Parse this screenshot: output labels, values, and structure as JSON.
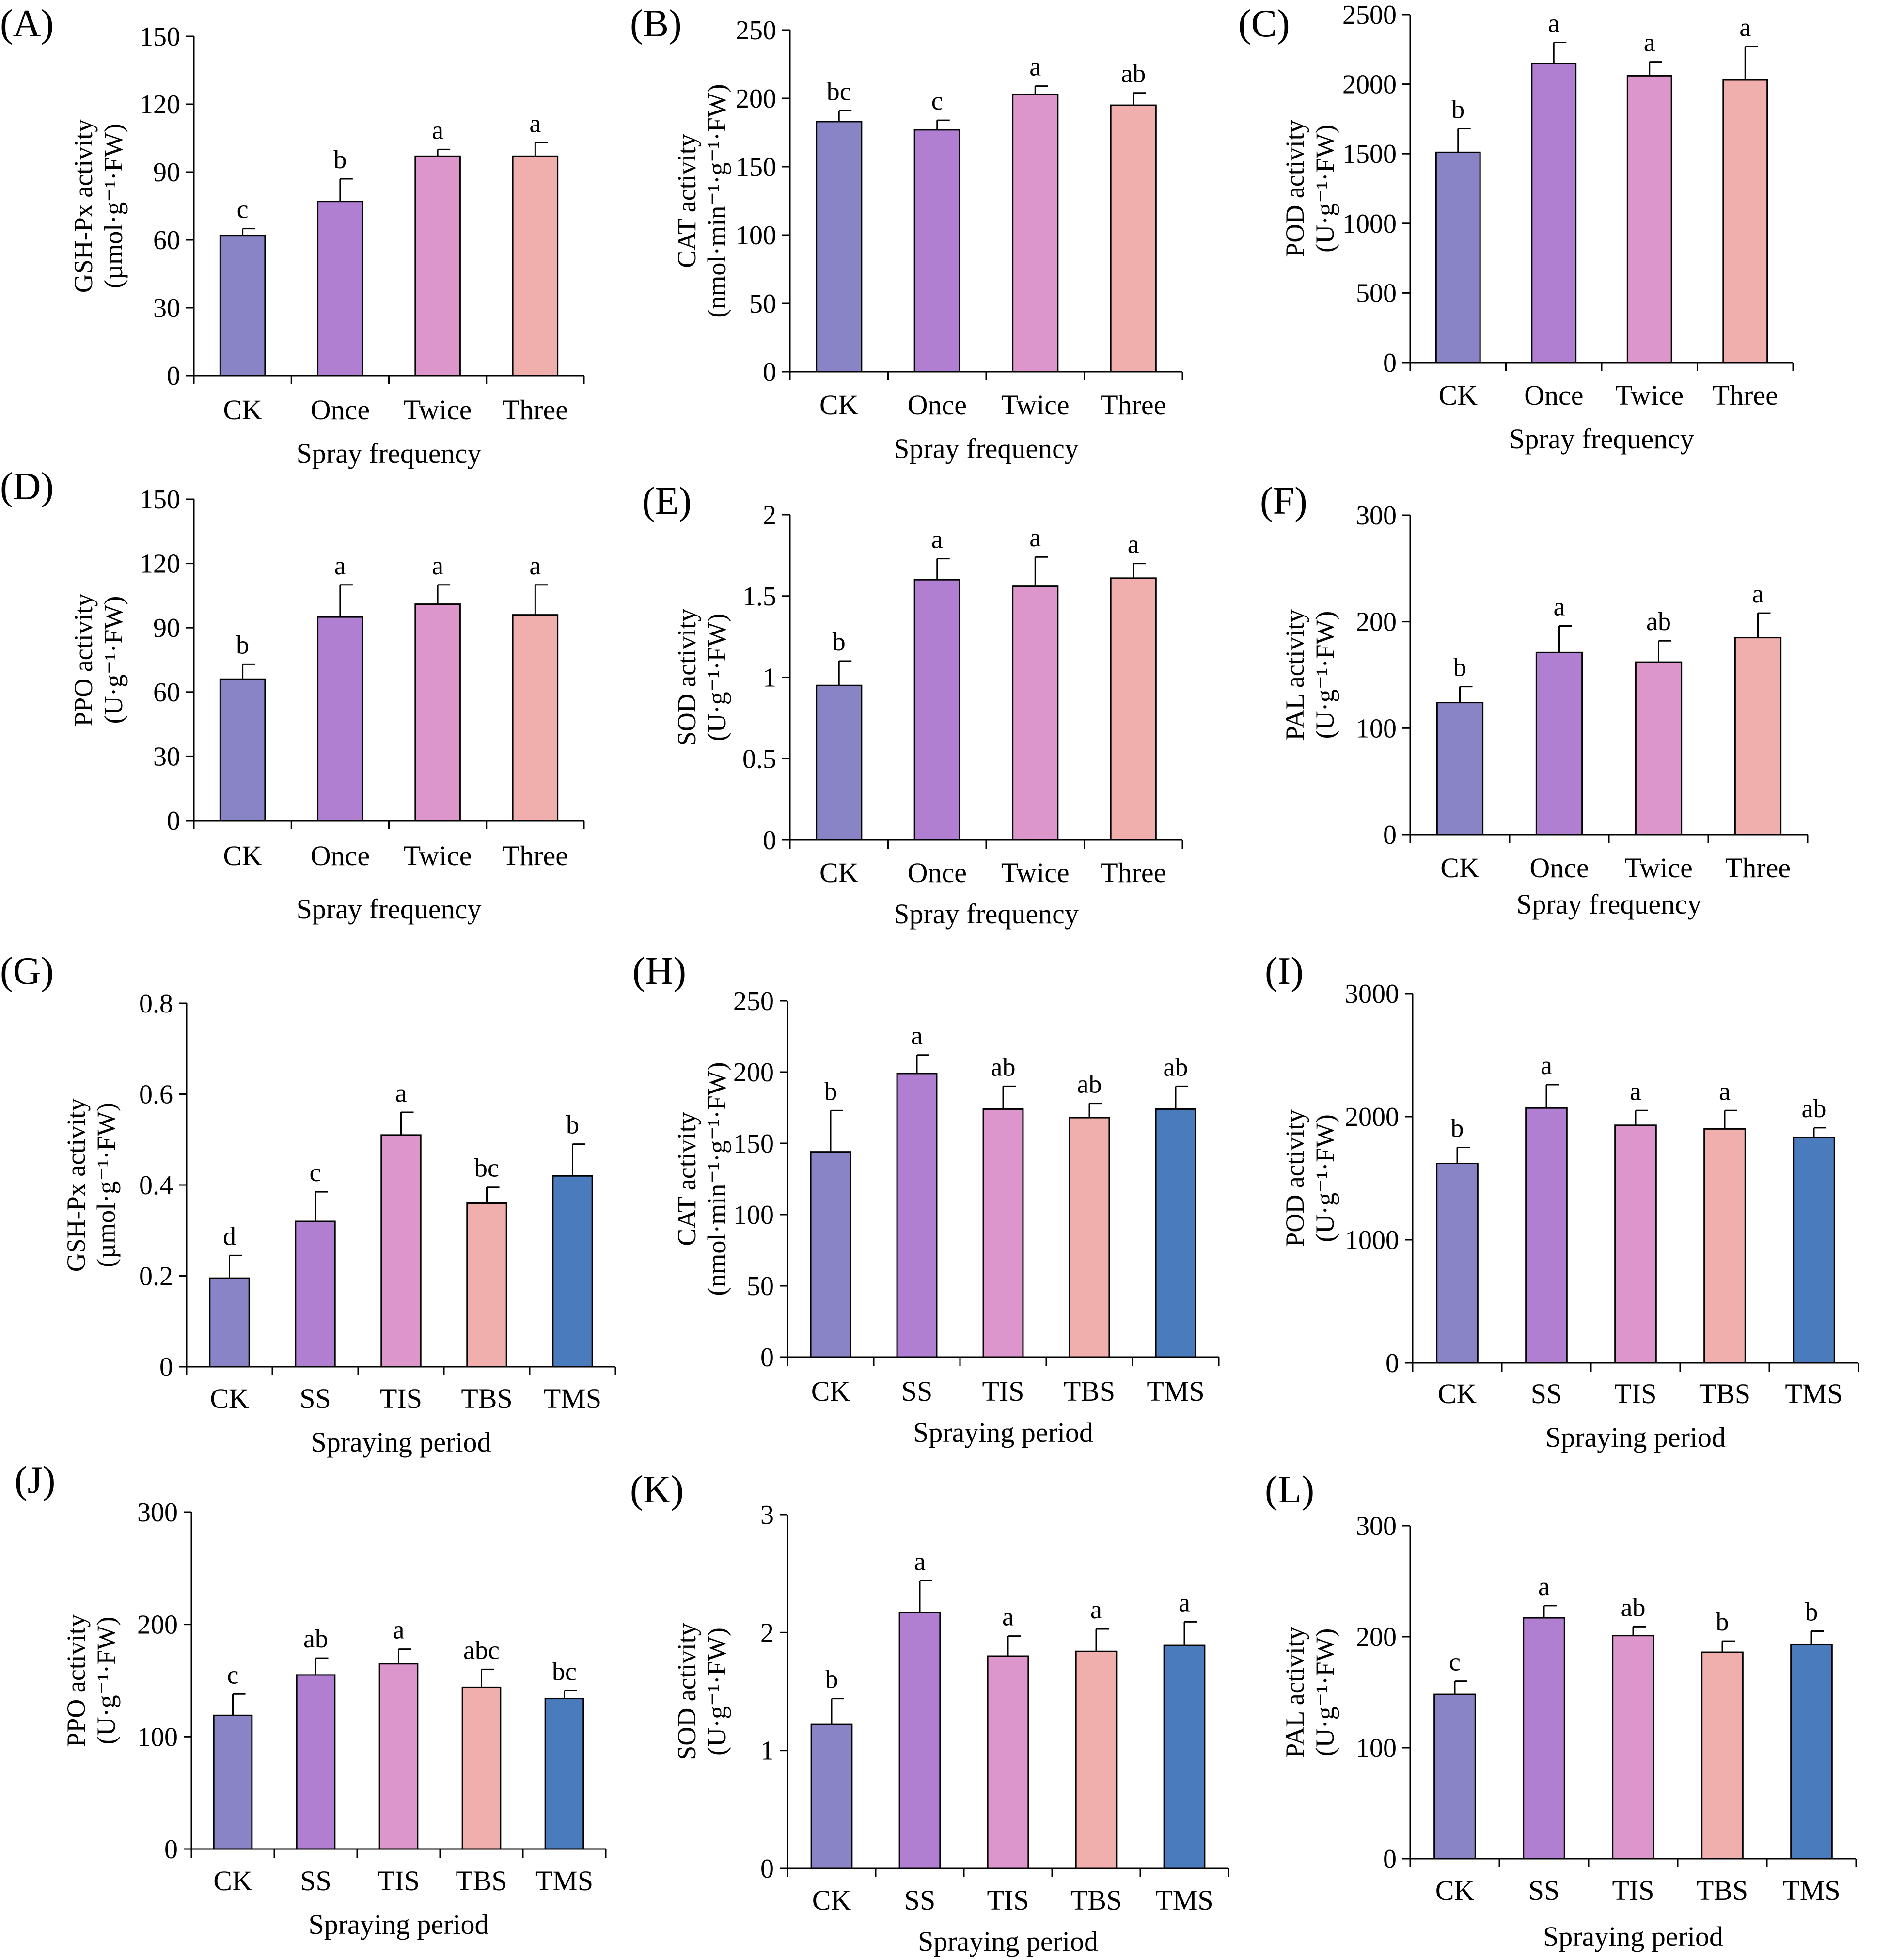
{
  "colors": {
    "CK": "#8884c6",
    "Once": "#b07fd2",
    "Twice": "#dc96cb",
    "Three": "#f0aeac",
    "SS": "#b07fd2",
    "TIS": "#dc96cb",
    "TBS": "#f0aeac",
    "TMS": "#4a7bbd"
  },
  "chart_data": [
    {
      "type": "bar",
      "panel": "(A)",
      "categories": [
        "CK",
        "Once",
        "Twice",
        "Three"
      ],
      "values": [
        62,
        77,
        97,
        97
      ],
      "errors": [
        3,
        10,
        3,
        6
      ],
      "letters": [
        "c",
        "b",
        "a",
        "a"
      ],
      "ylabel": [
        "GSH-Px activity",
        "(µmol·g⁻¹·FW)"
      ],
      "xlabel": "Spray frequency",
      "ylim": [
        0,
        150
      ],
      "ticks": [
        0,
        30,
        60,
        90,
        120,
        150
      ],
      "tick_labels": [
        "0",
        "30",
        "60",
        "90",
        "120",
        "150"
      ]
    },
    {
      "type": "bar",
      "panel": "(B)",
      "categories": [
        "CK",
        "Once",
        "Twice",
        "Three"
      ],
      "values": [
        183,
        177,
        203,
        195
      ],
      "errors": [
        8,
        7,
        6,
        9
      ],
      "letters": [
        "bc",
        "c",
        "a",
        "ab"
      ],
      "ylabel": [
        "CAT activity",
        "(nmol·min⁻¹·g⁻¹·FW)"
      ],
      "xlabel": "Spray frequency",
      "ylim": [
        0,
        250
      ],
      "ticks": [
        0,
        50,
        100,
        150,
        200,
        250
      ],
      "tick_labels": [
        "0",
        "50",
        "100",
        "150",
        "200",
        "250"
      ]
    },
    {
      "type": "bar",
      "panel": "(C)",
      "categories": [
        "CK",
        "Once",
        "Twice",
        "Three"
      ],
      "values": [
        1510,
        2150,
        2060,
        2030
      ],
      "errors": [
        170,
        150,
        100,
        240
      ],
      "letters": [
        "b",
        "a",
        "a",
        "a"
      ],
      "ylabel": [
        "POD activity",
        "(U·g⁻¹·FW)"
      ],
      "xlabel": "Spray frequency",
      "ylim": [
        0,
        2500
      ],
      "ticks": [
        0,
        500,
        1000,
        1500,
        2000,
        2500
      ],
      "tick_labels": [
        "0",
        "500",
        "1000",
        "1500",
        "2000",
        "2500"
      ]
    },
    {
      "type": "bar",
      "panel": "(D)",
      "categories": [
        "CK",
        "Once",
        "Twice",
        "Three"
      ],
      "values": [
        66,
        95,
        101,
        96
      ],
      "errors": [
        7,
        15,
        9,
        14
      ],
      "letters": [
        "b",
        "a",
        "a",
        "a"
      ],
      "ylabel": [
        "PPO activity",
        "(U·g⁻¹·FW)"
      ],
      "xlabel": "Spray frequency",
      "ylim": [
        0,
        150
      ],
      "ticks": [
        0,
        30,
        60,
        90,
        120,
        150
      ],
      "tick_labels": [
        "0",
        "30",
        "60",
        "90",
        "120",
        "150"
      ]
    },
    {
      "type": "bar",
      "panel": "(E)",
      "categories": [
        "CK",
        "Once",
        "Twice",
        "Three"
      ],
      "values": [
        0.95,
        1.6,
        1.56,
        1.61
      ],
      "errors": [
        0.15,
        0.13,
        0.18,
        0.09
      ],
      "letters": [
        "b",
        "a",
        "a",
        "a"
      ],
      "ylabel": [
        "SOD activity",
        "(U·g⁻¹·FW)"
      ],
      "xlabel": "Spray frequency",
      "ylim": [
        0,
        2
      ],
      "ticks": [
        0,
        0.5,
        1,
        1.5,
        2
      ],
      "tick_labels": [
        "0",
        "0.5",
        "1",
        "1.5",
        "2"
      ]
    },
    {
      "type": "bar",
      "panel": "(F)",
      "categories": [
        "CK",
        "Once",
        "Twice",
        "Three"
      ],
      "values": [
        124,
        171,
        162,
        185
      ],
      "errors": [
        15,
        25,
        20,
        23
      ],
      "letters": [
        "b",
        "a",
        "ab",
        "a"
      ],
      "ylabel": [
        "PAL activity",
        "(U·g⁻¹·FW)"
      ],
      "xlabel": "Spray frequency",
      "ylim": [
        0,
        300
      ],
      "ticks": [
        0,
        100,
        200,
        300
      ],
      "tick_labels": [
        "0",
        "100",
        "200",
        "300"
      ]
    },
    {
      "type": "bar",
      "panel": "(G)",
      "categories": [
        "CK",
        "SS",
        "TIS",
        "TBS",
        "TMS"
      ],
      "values": [
        0.195,
        0.32,
        0.51,
        0.36,
        0.42
      ],
      "errors": [
        0.05,
        0.065,
        0.05,
        0.035,
        0.07
      ],
      "letters": [
        "d",
        "c",
        "a",
        "bc",
        "b"
      ],
      "ylabel": [
        "GSH-Px activity",
        "(µmol·g⁻¹·FW)"
      ],
      "xlabel": "Spraying period",
      "ylim": [
        0,
        0.8
      ],
      "ticks": [
        0,
        0.2,
        0.4,
        0.6,
        0.8
      ],
      "tick_labels": [
        "0",
        "0.2",
        "0.4",
        "0.6",
        "0.8"
      ]
    },
    {
      "type": "bar",
      "panel": "(H)",
      "categories": [
        "CK",
        "SS",
        "TIS",
        "TBS",
        "TMS"
      ],
      "values": [
        144,
        199,
        174,
        168,
        174
      ],
      "errors": [
        29,
        13,
        16,
        10,
        16
      ],
      "letters": [
        "b",
        "a",
        "ab",
        "ab",
        "ab"
      ],
      "ylabel": [
        "CAT activity",
        "(nmol·min⁻¹·g⁻¹·FW)"
      ],
      "xlabel": "Spraying period",
      "ylim": [
        0,
        250
      ],
      "ticks": [
        0,
        50,
        100,
        150,
        200,
        250
      ],
      "tick_labels": [
        "0",
        "50",
        "100",
        "150",
        "200",
        "250"
      ]
    },
    {
      "type": "bar",
      "panel": "(I)",
      "categories": [
        "CK",
        "SS",
        "TIS",
        "TBS",
        "TMS"
      ],
      "values": [
        1620,
        2070,
        1930,
        1900,
        1830
      ],
      "errors": [
        130,
        190,
        120,
        150,
        80
      ],
      "letters": [
        "b",
        "a",
        "a",
        "a",
        "ab"
      ],
      "ylabel": [
        "POD activity",
        "(U·g⁻¹·FW)"
      ],
      "xlabel": "Spraying period",
      "ylim": [
        0,
        3000
      ],
      "ticks": [
        0,
        1000,
        2000,
        3000
      ],
      "tick_labels": [
        "0",
        "1000",
        "2000",
        "3000"
      ]
    },
    {
      "type": "bar",
      "panel": "(J)",
      "categories": [
        "CK",
        "SS",
        "TIS",
        "TBS",
        "TMS"
      ],
      "values": [
        119,
        155,
        165,
        144,
        134
      ],
      "errors": [
        19,
        15,
        13,
        16,
        7
      ],
      "letters": [
        "c",
        "ab",
        "a",
        "abc",
        "bc"
      ],
      "ylabel": [
        "PPO activity",
        "(U·g⁻¹·FW)"
      ],
      "xlabel": "Spraying period",
      "ylim": [
        0,
        300
      ],
      "ticks": [
        0,
        100,
        200,
        300
      ],
      "tick_labels": [
        "0",
        "100",
        "200",
        "300"
      ]
    },
    {
      "type": "bar",
      "panel": "(K)",
      "categories": [
        "CK",
        "SS",
        "TIS",
        "TBS",
        "TMS"
      ],
      "values": [
        1.22,
        2.17,
        1.8,
        1.84,
        1.89
      ],
      "errors": [
        0.22,
        0.27,
        0.17,
        0.19,
        0.2
      ],
      "letters": [
        "b",
        "a",
        "a",
        "a",
        "a"
      ],
      "ylabel": [
        "SOD activity",
        "(U·g⁻¹·FW)"
      ],
      "xlabel": "Spraying period",
      "ylim": [
        0,
        3
      ],
      "ticks": [
        0,
        1,
        2,
        3
      ],
      "tick_labels": [
        "0",
        "1",
        "2",
        "3"
      ]
    },
    {
      "type": "bar",
      "panel": "(L)",
      "categories": [
        "CK",
        "SS",
        "TIS",
        "TBS",
        "TMS"
      ],
      "values": [
        148,
        217,
        201,
        186,
        193
      ],
      "errors": [
        12,
        11,
        8,
        10,
        12
      ],
      "letters": [
        "c",
        "a",
        "ab",
        "b",
        "b"
      ],
      "ylabel": [
        "PAL activity",
        "(U·g⁻¹·FW)"
      ],
      "xlabel": "Spraying period",
      "ylim": [
        0,
        300
      ],
      "ticks": [
        0,
        100,
        200,
        300
      ],
      "tick_labels": [
        "0",
        "100",
        "200",
        "300"
      ]
    }
  ]
}
